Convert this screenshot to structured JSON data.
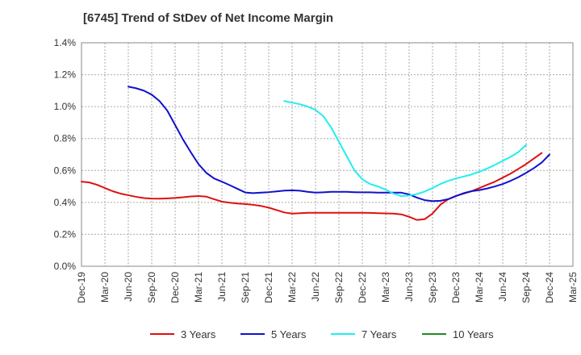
{
  "chart_data": {
    "type": "line",
    "title": "[6745]  Trend of StDev of Net Income Margin",
    "xlabel": "",
    "ylabel": "",
    "x_ticks": [
      "Dec-19",
      "Mar-20",
      "Jun-20",
      "Sep-20",
      "Dec-20",
      "Mar-21",
      "Jun-21",
      "Sep-21",
      "Dec-21",
      "Mar-22",
      "Jun-22",
      "Sep-22",
      "Dec-22",
      "Mar-23",
      "Jun-23",
      "Sep-23",
      "Dec-23",
      "Mar-24",
      "Jun-24",
      "Sep-24",
      "Dec-24",
      "Mar-25"
    ],
    "y_ticks": [
      "0.0%",
      "0.2%",
      "0.4%",
      "0.6%",
      "0.8%",
      "1.0%",
      "1.2%",
      "1.4%"
    ],
    "ylim": [
      0,
      1.4
    ],
    "y_unit": "%",
    "grid": true,
    "legend_position": "bottom",
    "series": [
      {
        "name": "3 Years",
        "color": "#dd1111",
        "start_index": 0,
        "values": [
          0.53,
          0.525,
          0.51,
          0.49,
          0.47,
          0.455,
          0.445,
          0.435,
          0.427,
          0.424,
          0.423,
          0.425,
          0.428,
          0.432,
          0.437,
          0.44,
          0.436,
          0.42,
          0.405,
          0.398,
          0.393,
          0.39,
          0.385,
          0.378,
          0.367,
          0.352,
          0.337,
          0.33,
          0.332,
          0.335,
          0.335,
          0.335,
          0.335,
          0.335,
          0.335,
          0.335,
          0.335,
          0.334,
          0.332,
          0.331,
          0.33,
          0.325,
          0.31,
          0.29,
          0.295,
          0.33,
          0.385,
          0.42,
          0.44,
          0.455,
          0.47,
          0.49,
          0.51,
          0.53,
          0.555,
          0.58,
          0.61,
          0.64,
          0.675,
          0.71
        ]
      },
      {
        "name": "5 Years",
        "color": "#1111cc",
        "start_index": 6,
        "values": [
          1.125,
          1.115,
          1.1,
          1.075,
          1.035,
          0.975,
          0.885,
          0.795,
          0.715,
          0.64,
          0.585,
          0.55,
          0.53,
          0.508,
          0.485,
          0.462,
          0.458,
          0.461,
          0.464,
          0.469,
          0.474,
          0.476,
          0.473,
          0.466,
          0.461,
          0.463,
          0.466,
          0.466,
          0.466,
          0.464,
          0.463,
          0.463,
          0.461,
          0.461,
          0.461,
          0.461,
          0.45,
          0.43,
          0.414,
          0.408,
          0.41,
          0.42,
          0.44,
          0.458,
          0.47,
          0.477,
          0.487,
          0.5,
          0.515,
          0.535,
          0.558,
          0.585,
          0.615,
          0.65,
          0.7
        ]
      },
      {
        "name": "7 Years",
        "color": "#22eeee",
        "start_index": 26,
        "values": [
          1.035,
          1.025,
          1.015,
          1.0,
          0.98,
          0.94,
          0.87,
          0.78,
          0.69,
          0.6,
          0.545,
          0.515,
          0.5,
          0.48,
          0.455,
          0.44,
          0.443,
          0.452,
          0.468,
          0.49,
          0.515,
          0.535,
          0.55,
          0.562,
          0.575,
          0.592,
          0.612,
          0.635,
          0.66,
          0.685,
          0.715,
          0.76
        ]
      },
      {
        "name": "10 Years",
        "color": "#228822",
        "start_index": 0,
        "values": []
      }
    ]
  }
}
